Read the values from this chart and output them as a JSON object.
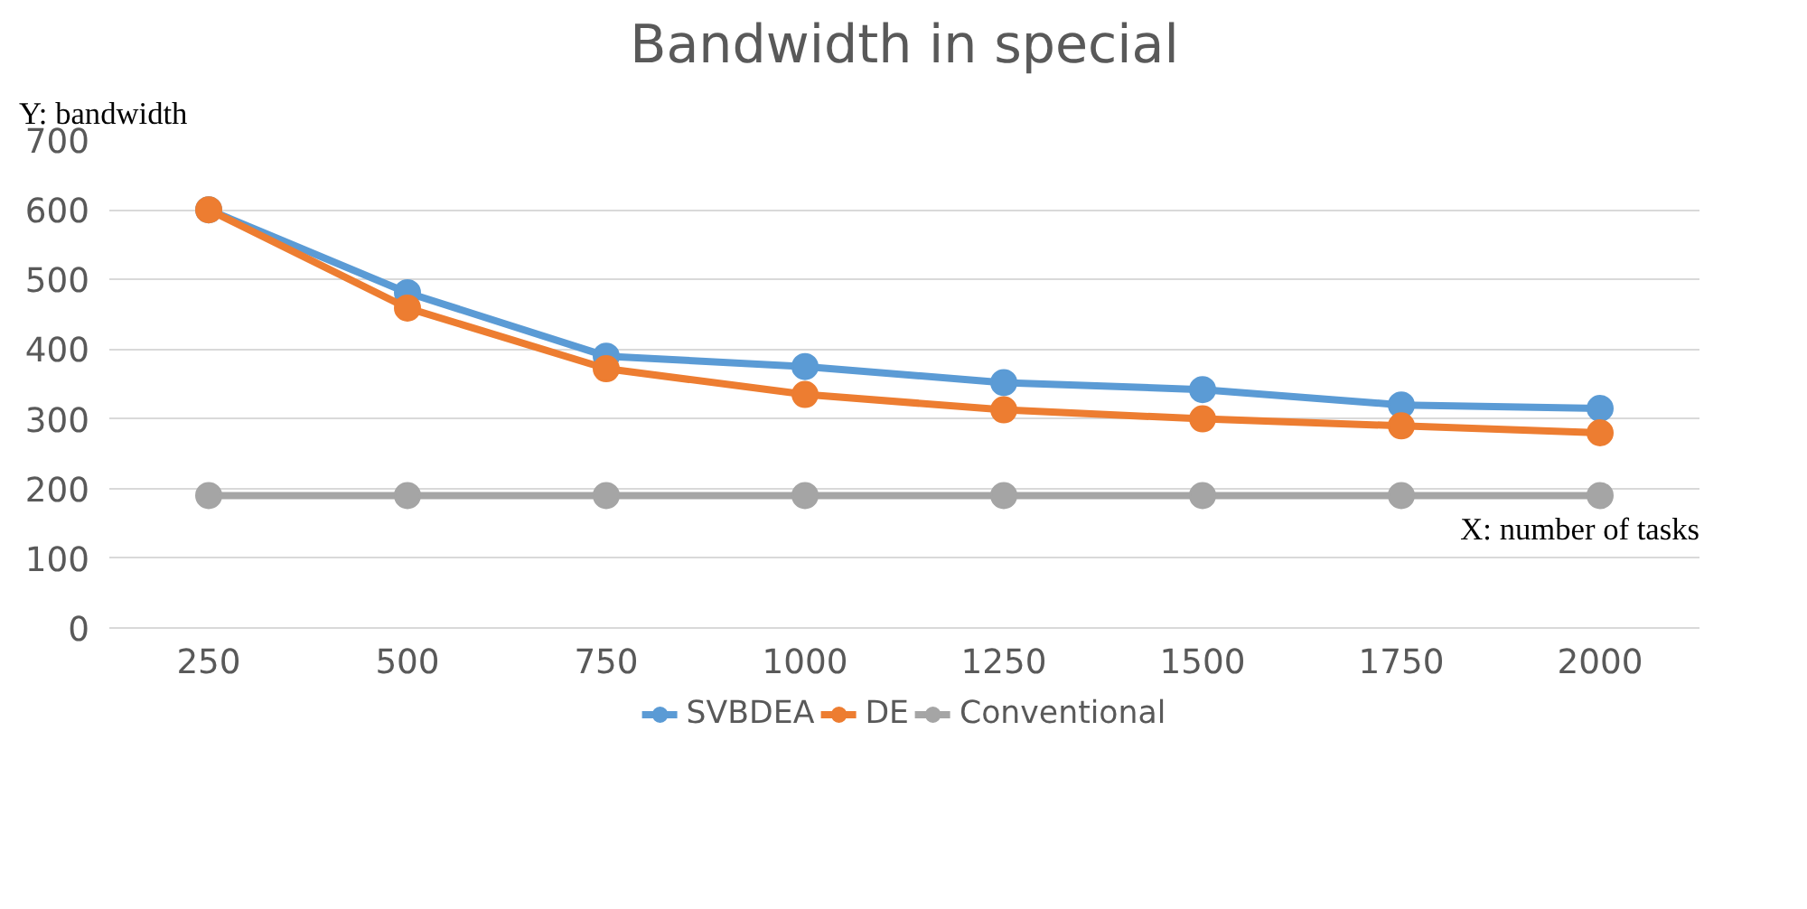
{
  "chart_data": {
    "type": "line",
    "title": "Bandwidth in special",
    "xlabel": "X: number of tasks",
    "ylabel": "Y: bandwidth",
    "categories": [
      "250",
      "500",
      "750",
      "1000",
      "1250",
      "1500",
      "1750",
      "2000"
    ],
    "series": [
      {
        "name": "SVBDEA",
        "color": "#5b9bd5",
        "values": [
          600,
          481,
          390,
          375,
          352,
          342,
          320,
          315
        ]
      },
      {
        "name": "DE",
        "color": "#ed7d31",
        "values": [
          600,
          459,
          372,
          335,
          313,
          300,
          290,
          280
        ]
      },
      {
        "name": "Conventional",
        "color": "#a5a5a5",
        "values": [
          190,
          190,
          190,
          190,
          190,
          190,
          190,
          190
        ]
      }
    ],
    "ylim": [
      0,
      700
    ],
    "yticks": [
      0,
      100,
      200,
      300,
      400,
      500,
      600,
      700
    ],
    "grid": "y",
    "legend": "bottom",
    "marker": "circle",
    "line_style": "solid"
  }
}
